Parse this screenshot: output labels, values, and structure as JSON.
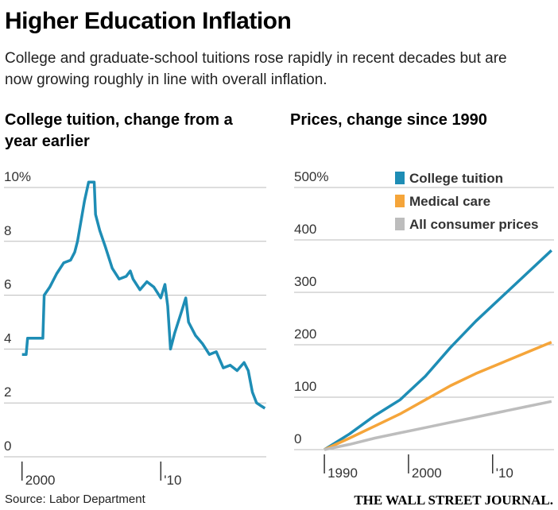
{
  "header": {
    "title": "Higher Education Inflation",
    "subtitle": "College and graduate-school tuitions rose rapidly in recent decades but are now growing roughly in line with overall inflation."
  },
  "chart_data": [
    {
      "type": "line",
      "title": "College tuition, change from a year earlier",
      "x": [
        2000.0,
        2000.3,
        2000.4,
        2001.0,
        2001.5,
        2001.6,
        2002.0,
        2002.5,
        2003.0,
        2003.5,
        2003.8,
        2004.0,
        2004.5,
        2004.8,
        2005.2,
        2005.3,
        2005.6,
        2006.0,
        2006.5,
        2007.0,
        2007.5,
        2007.8,
        2008.0,
        2008.5,
        2009.0,
        2009.5,
        2010.0,
        2010.3,
        2010.5,
        2010.7,
        2011.0,
        2011.5,
        2011.8,
        2012.0,
        2012.5,
        2013.0,
        2013.5,
        2014.0,
        2014.5,
        2015.0,
        2015.5,
        2016.0,
        2016.3,
        2016.6,
        2016.9,
        2017.2,
        2017.5
      ],
      "values": [
        3.8,
        3.8,
        4.4,
        4.4,
        4.4,
        6.0,
        6.3,
        6.8,
        7.2,
        7.3,
        7.6,
        8.0,
        9.5,
        10.2,
        10.2,
        9.0,
        8.4,
        7.8,
        7.0,
        6.6,
        6.7,
        6.9,
        6.6,
        6.2,
        6.5,
        6.3,
        5.9,
        6.4,
        5.6,
        4.0,
        4.6,
        5.4,
        5.9,
        5.0,
        4.5,
        4.2,
        3.8,
        3.9,
        3.3,
        3.4,
        3.2,
        3.5,
        3.2,
        2.4,
        2.0,
        1.9,
        1.8
      ],
      "color": "#1e8db5",
      "xlim": [
        1998.7,
        2017.6
      ],
      "xticks": [
        2000,
        {
          "value": 2010,
          "label": "'10"
        }
      ],
      "ylim": [
        0,
        10
      ],
      "yticks": [
        0,
        2,
        4,
        6,
        8,
        {
          "value": 10,
          "label": "10%"
        }
      ],
      "grid": true
    },
    {
      "type": "line",
      "title": "Prices, change since 1990",
      "x": [
        1990,
        1993,
        1996,
        1999,
        2002,
        2005,
        2008,
        2011,
        2014,
        2017
      ],
      "series": [
        {
          "name": "College tuition",
          "color": "#1e8db5",
          "values": [
            0,
            30,
            65,
            95,
            140,
            195,
            245,
            290,
            335,
            380
          ]
        },
        {
          "name": "Medical care",
          "color": "#f5a53a",
          "values": [
            0,
            22,
            45,
            68,
            95,
            122,
            145,
            165,
            185,
            205
          ]
        },
        {
          "name": "All consumer prices",
          "color": "#bdbdbd",
          "values": [
            0,
            10,
            22,
            32,
            42,
            52,
            62,
            72,
            82,
            92
          ]
        }
      ],
      "xlim": [
        1986.4,
        2017.3
      ],
      "xticks": [
        1990,
        2000,
        {
          "value": 2010,
          "label": "'10"
        }
      ],
      "ylim": [
        0,
        500
      ],
      "yticks": [
        0,
        100,
        200,
        300,
        400,
        {
          "value": 500,
          "label": "500%"
        }
      ],
      "grid": true,
      "legend": "top-right"
    }
  ],
  "footer": {
    "source": "Source: Labor Department",
    "credit": "THE WALL STREET JOURNAL."
  }
}
